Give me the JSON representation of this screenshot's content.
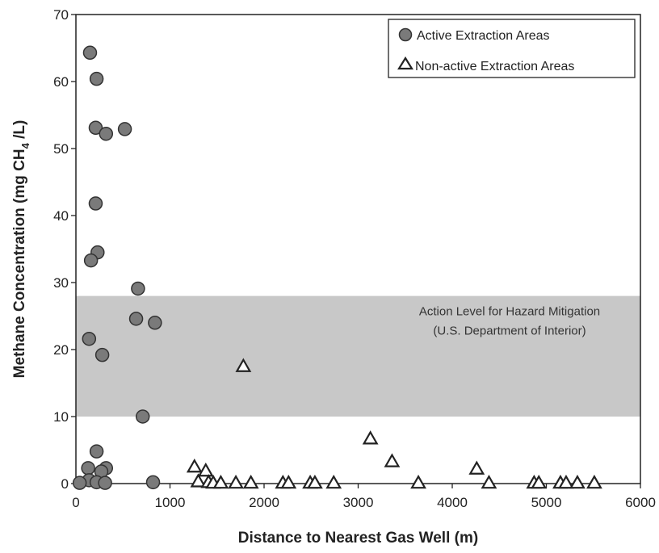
{
  "chart_data": {
    "type": "scatter",
    "xlabel": "Distance to Nearest Gas Well (m)",
    "ylabel_parts": [
      "Methane Concentration (mg CH",
      "4",
      " /L)"
    ],
    "xlim": [
      0,
      6000
    ],
    "ylim": [
      0,
      70
    ],
    "x_ticks": [
      0,
      1000,
      2000,
      3000,
      4000,
      5000,
      6000
    ],
    "y_ticks": [
      0,
      10,
      20,
      30,
      40,
      50,
      60,
      70
    ],
    "grid": false,
    "legend_position": "top-right",
    "band": {
      "y_range": [
        10,
        28
      ],
      "color": "#c8c8c8",
      "label_line1": "Action Level for Hazard Mitigation",
      "label_line2": "(U.S. Department of Interior)"
    },
    "series": [
      {
        "name": "Active Extraction Areas",
        "marker": "circle",
        "color": "#7a7a7a",
        "points": [
          [
            150,
            64.3
          ],
          [
            220,
            60.4
          ],
          [
            210,
            53.1
          ],
          [
            520,
            52.9
          ],
          [
            320,
            52.2
          ],
          [
            210,
            41.8
          ],
          [
            230,
            34.5
          ],
          [
            160,
            33.3
          ],
          [
            660,
            29.1
          ],
          [
            640,
            24.6
          ],
          [
            840,
            24.0
          ],
          [
            140,
            21.6
          ],
          [
            280,
            19.2
          ],
          [
            710,
            10.0
          ],
          [
            220,
            4.8
          ],
          [
            130,
            2.3
          ],
          [
            320,
            2.3
          ],
          [
            270,
            1.8
          ],
          [
            140,
            0.5
          ],
          [
            220,
            0.2
          ],
          [
            40,
            0.1
          ],
          [
            310,
            0.1
          ],
          [
            820,
            0.2
          ]
        ]
      },
      {
        "name": "Non-active Extraction Areas",
        "marker": "triangle",
        "color": "#ffffff",
        "points": [
          [
            1780,
            17.5
          ],
          [
            3130,
            6.7
          ],
          [
            3360,
            3.3
          ],
          [
            1260,
            2.5
          ],
          [
            1380,
            1.9
          ],
          [
            4260,
            2.2
          ],
          [
            1300,
            0.3
          ],
          [
            1410,
            0.2
          ],
          [
            1460,
            0.1
          ],
          [
            1540,
            0.1
          ],
          [
            1700,
            0.1
          ],
          [
            1860,
            0.1
          ],
          [
            2200,
            0.1
          ],
          [
            2260,
            0.1
          ],
          [
            2490,
            0.1
          ],
          [
            2540,
            0.1
          ],
          [
            2740,
            0.1
          ],
          [
            3640,
            0.1
          ],
          [
            4390,
            0.1
          ],
          [
            4870,
            0.1
          ],
          [
            4920,
            0.1
          ],
          [
            5150,
            0.1
          ],
          [
            5210,
            0.1
          ],
          [
            5330,
            0.1
          ],
          [
            5510,
            0.1
          ]
        ]
      }
    ]
  }
}
